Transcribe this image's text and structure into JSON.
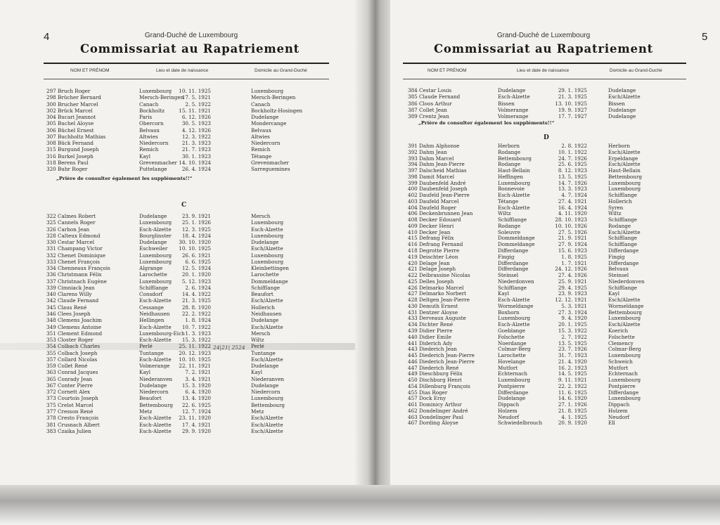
{
  "header": {
    "country": "Grand-Duché de Luxembourg",
    "title": "Commissariat au Rapatriement",
    "columns": [
      "NOM ET PRÉNOM",
      "Lieu et date de naissance",
      "Domicile au Grand-Duché"
    ]
  },
  "left_page": {
    "page_number": "4",
    "section_b_entries": [
      [
        "297 Bruch Roger",
        "Luxembourg",
        "10. 11. 1925",
        "Luxembourg"
      ],
      [
        "298 Brücher Bernard",
        "Mersch-Beringen",
        "17. 5. 1921",
        "Mersch-Beringen"
      ],
      [
        "300 Brucher Marcel",
        "Canach",
        "2. 5. 1922",
        "Canach"
      ],
      [
        "302 Brück Marcel",
        "Bockholtz",
        "15. 11. 1921",
        "Bockholtz-Hosingen"
      ],
      [
        "304 Bucari Jeannot",
        "Paris",
        "6. 12. 1926",
        "Dudelange"
      ],
      [
        "305 Buchel Aloyse",
        "Obercorn",
        "30. 5. 1923",
        "Mondercange"
      ],
      [
        "306 Büchel Ernest",
        "Belvaux",
        "4. 12. 1926",
        "Belvaux"
      ],
      [
        "307 Buchholtz Mathias",
        "Altwies",
        "12. 3. 1922",
        "Altwies"
      ],
      [
        "308 Bück Fernand",
        "Niedercorn",
        "21. 3. 1923",
        "Niedercorn"
      ],
      [
        "315 Burgund Joseph",
        "Remich",
        "21. 7. 1923",
        "Remich"
      ],
      [
        "316 Burkel Joseph",
        "Kayl",
        "30. 1. 1923",
        "Tétange"
      ],
      [
        "318 Berens Paul",
        "Grevenmacher",
        "14. 10. 1924",
        "Grevenmacher"
      ],
      [
        "320 Buhr Roger",
        "Puttelange",
        "26. 4. 1924",
        "Sarreguemines"
      ]
    ],
    "supplement_note": "„Prière de consulter également les suppléments!!“",
    "section_c_letter": "C",
    "section_c_entries": [
      [
        "322 Calmes Robert",
        "Dudelange",
        "23. 9. 1921",
        "Mersch"
      ],
      [
        "325 Cannels Roger",
        "Luxembourg",
        "25. 1. 1926",
        "Luxembourg"
      ],
      [
        "326 Carbon Jean",
        "Esch-Alzette",
        "12. 3. 1925",
        "Esch-Alzette"
      ],
      [
        "328 Calteux Edmond",
        "Bourglinster",
        "18. 4. 1924",
        "Luxembourg"
      ],
      [
        "330 Cestar Marcel",
        "Dudelange",
        "30. 10. 1920",
        "Dudelange"
      ],
      [
        "331 Champang Victor",
        "Eschweiler",
        "10. 10. 1925",
        "Esch/Alzette"
      ],
      [
        "332 Chenet Dominique",
        "Luxembourg",
        "26. 6. 1921",
        "Luxembourg"
      ],
      [
        "333 Chenet François",
        "Luxembourg",
        "6. 6. 1925",
        "Luxembourg"
      ],
      [
        "334 Chenneaux François",
        "Algrange",
        "12. 5. 1924",
        "Kleinbettingen"
      ],
      [
        "336 Christmann Félix",
        "Larochette",
        "20. 1. 1920",
        "Larochette"
      ],
      [
        "337 Christnach Eugène",
        "Luxembourg",
        "5. 12. 1923",
        "Dommeldange"
      ],
      [
        "339 Cimniack Jean",
        "Schifflange",
        "2. 6. 1924",
        "Schifflange"
      ],
      [
        "340 Clarens Willy",
        "Consdorf",
        "14. 4. 1922",
        "Beaufort"
      ],
      [
        "342 Claude Fernand",
        "Esch-Alzette",
        "21. 3. 1925",
        "Esch/Alzette"
      ],
      [
        "345 Claus René",
        "Cessange",
        "28. 8. 1920",
        "Hollerich"
      ],
      [
        "346 Clees Joseph",
        "Neidhausen",
        "22. 2. 1922",
        "Neidhausen"
      ],
      [
        "348 Clemens Joachim",
        "Hellingen",
        "1. 8. 1924",
        "Dudelange"
      ],
      [
        "349 Clemens Antoine",
        "Esch-Alzette",
        "10. 7. 1922",
        "Esch/Alzette"
      ],
      [
        "351 Clement Edmond",
        "Luxembourg-Eich",
        "1. 3. 1923",
        "Mersch"
      ],
      [
        "353 Closter Roger",
        "Esch-Alzette",
        "15. 3. 1922",
        "Wiltz"
      ],
      [
        "354 Colbach Charles",
        "Perlé",
        "25. 11. 1922",
        "Perlé"
      ],
      [
        "355 Colbach Joseph",
        "Tuntange",
        "20. 12. 1923",
        "Tuntange"
      ],
      [
        "357 Collard Nicolas",
        "Esch-Alzette",
        "10. 10. 1925",
        "Esch/Alzette"
      ],
      [
        "359 Collet René",
        "Volmerange",
        "22. 11. 1921",
        "Dudelange"
      ],
      [
        "363 Conrad Jacques",
        "Kayl",
        "7. 2. 1921",
        "Kayl"
      ],
      [
        "365 Conrady Jean",
        "Niederanven",
        "3. 4. 1921",
        "Niederanven"
      ],
      [
        "367 Conter Pierre",
        "Dudelange",
        "15. 3. 1920",
        "Dudelange"
      ],
      [
        "372 Cornett Alex",
        "Niedercorn",
        "6. 4. 1920",
        "Niedercorn"
      ],
      [
        "373 Courtois Joseph",
        "Beaufort",
        "13. 4. 1920",
        "Luxembourg"
      ],
      [
        "375 Crelot Marcel",
        "Bettembourg",
        "22. 6. 1925",
        "Bettembourg"
      ],
      [
        "377 Cresson René",
        "Metz",
        "12. 7. 1924",
        "Metz"
      ],
      [
        "378 Cresto François",
        "Esch-Alzette",
        "23. 11. 1920",
        "Esch/Alzette"
      ],
      [
        "381 Crusnach Albert",
        "Esch-Alzette",
        "17. 4. 1921",
        "Esch/Alzette"
      ],
      [
        "383 Czaika Julien",
        "Esch-Alzette",
        "29. 9. 1920",
        "Esch/Alzette"
      ]
    ],
    "highlighted_entry": "354 Colbach Charles",
    "handwritten_note": "24|21| 2524"
  },
  "right_page": {
    "page_number": "5",
    "section_c_entries": [
      [
        "384 Cestar Louis",
        "Dudelange",
        "29. 1. 1925",
        "Dudelange"
      ],
      [
        "385 Claude Fernand",
        "Esch-Alzette",
        "21. 3. 1925",
        "Esch/Alzette"
      ],
      [
        "386 Cloos Arthur",
        "Bissen",
        "13. 10. 1925",
        "Bissen"
      ],
      [
        "387 Collet Jean",
        "Volmerange",
        "19. 9. 1927",
        "Dudelange"
      ],
      [
        "389 Crentz Jean",
        "Volmerange",
        "17. 7. 1927",
        "Dudelange"
      ]
    ],
    "supplement_note": "„Prière de consulter également les suppléments!!“",
    "section_d_letter": "D",
    "section_d_entries": [
      [
        "391 Dahm Alphonse",
        "Herborn",
        "2. 8. 1922",
        "Herborn"
      ],
      [
        "392 Dahm Jean",
        "Rodange",
        "10. 1. 1922",
        "Esch/Alzette"
      ],
      [
        "393 Dahm Marcel",
        "Bettembourg",
        "24. 7. 1926",
        "Erpeldange"
      ],
      [
        "394 Dahm Jean-Pierre",
        "Rodange",
        "25. 6. 1925",
        "Esch/Alzette"
      ],
      [
        "397 Dalscheid Mathias",
        "Haut-Bellain",
        "8. 12. 1923",
        "Haut-Bellain"
      ],
      [
        "398 Damit Marcel",
        "Heffingen",
        "13. 5. 1925",
        "Bettembourg"
      ],
      [
        "399 Daubenfeld André",
        "Luxembourg",
        "14. 7. 1926",
        "Luxembourg"
      ],
      [
        "400 Daubenfeld Joseph",
        "Bonnevoie",
        "13. 3. 1923",
        "Luxembourg"
      ],
      [
        "402 Daufeld Jean-Pierre",
        "Esch-Alzette",
        "4. 7. 1924",
        "Schifflange"
      ],
      [
        "403 Daufeld Marcel",
        "Tétange",
        "27. 4. 1921",
        "Hollerich"
      ],
      [
        "404 Daufeld Roger",
        "Esch-Alzette",
        "16. 4. 1924",
        "Syren"
      ],
      [
        "406 Deckenbrunnen Jean",
        "Wiltz",
        "4. 11. 1920",
        "Wiltz"
      ],
      [
        "408 Decker Edouard",
        "Schifflange",
        "28. 10. 1923",
        "Schifflange"
      ],
      [
        "409 Decker Henri",
        "Rodange",
        "10. 10. 1926",
        "Rodange"
      ],
      [
        "410 Decker Jean",
        "Soleuvre",
        "27. 5. 1926",
        "Esch/Alzette"
      ],
      [
        "415 Defrang Félix",
        "Dommeldange",
        "21. 9. 1921",
        "Schifflange"
      ],
      [
        "416 Defrang Fernand",
        "Dommeldange",
        "27. 9. 1924",
        "Schifflange"
      ],
      [
        "418 Degrotte Pierre",
        "Differdange",
        "15. 6. 1923",
        "Differdange"
      ],
      [
        "419 Deischter Léon",
        "Fingig",
        "1. 8. 1925",
        "Fingig"
      ],
      [
        "420 Delage Jean",
        "Differdange",
        "1. 7. 1921",
        "Differdange"
      ],
      [
        "421 Delage Joseph",
        "Differdange",
        "24. 12. 1926",
        "Belvaux"
      ],
      [
        "422 Delbrassine Nicolas",
        "Steinsel",
        "27. 4. 1926",
        "Steinsel"
      ],
      [
        "425 Delles Joseph",
        "Niederdonven",
        "25. 9. 1921",
        "Niederdonven"
      ],
      [
        "426 Delmarko Marcel",
        "Schifflange",
        "29. 4. 1925",
        "Schifflange"
      ],
      [
        "427 Delmarko Norbert",
        "Kayl",
        "23. 9. 1923",
        "Kayl"
      ],
      [
        "428 Deltgen Jean-Pierre",
        "Esch-Alzette",
        "12. 12. 1921",
        "Esch/Alzette"
      ],
      [
        "430 Demuth Ernest",
        "Wormeldange",
        "5. 3. 1921",
        "Wormeldange"
      ],
      [
        "431 Dentzer Aloyse",
        "Boxhorn",
        "27. 3. 1924",
        "Bettembourg"
      ],
      [
        "433 Derveaux Auguste",
        "Luxembourg",
        "9. 4. 1920",
        "Luxembourg"
      ],
      [
        "434 Dichter René",
        "Esch-Alzette",
        "20. 1. 1925",
        "Esch/Alzette"
      ],
      [
        "439 Didier Pierre",
        "Goeblange",
        "15. 3. 1922",
        "Koerich"
      ],
      [
        "440 Didier Emile",
        "Folschette",
        "2. 7. 1922",
        "Folschette"
      ],
      [
        "441 Diderich Ady",
        "Noerdange",
        "13. 5. 1925",
        "Clemency"
      ],
      [
        "443 Diederich Jean",
        "Colmar-Berg",
        "23. 7. 1926",
        "Colmar-Berg"
      ],
      [
        "445 Diederich Jean-Pierre",
        "Larochette",
        "31. 7. 1923",
        "Luxembourg"
      ],
      [
        "446 Diederich Jean-Pierre",
        "Hovelange",
        "21. 4. 1920",
        "Schweich"
      ],
      [
        "447 Diederich René",
        "Mutfort",
        "16. 2. 1923",
        "Mutfort"
      ],
      [
        "449 Dieschburg Félix",
        "Echternach",
        "14. 5. 1925",
        "Echternach"
      ],
      [
        "450 Dischburg Henri",
        "Luxembourg",
        "9. 11. 1921",
        "Luxembourg"
      ],
      [
        "454 Dillenburg François",
        "Pontpierre",
        "22. 2. 1922",
        "Pontpierre"
      ],
      [
        "455 Dias Roger",
        "Differdange",
        "11. 6. 1925",
        "Differdange"
      ],
      [
        "457 Dock Erny",
        "Dudelange",
        "14. 6. 1920",
        "Luxembourg"
      ],
      [
        "461 Dominicy Arthur",
        "Dippach",
        "27. 1. 1926",
        "Dippach"
      ],
      [
        "462 Dondelinger André",
        "Holzem",
        "21. 8. 1925",
        "Holzem"
      ],
      [
        "463 Dondelinger Paul",
        "Neudorf",
        "4. 1. 1925",
        "Neudorf"
      ],
      [
        "467 Dording Aloyse",
        "Schwiedelbrouch",
        "20. 9. 1920",
        "Ell"
      ]
    ]
  }
}
